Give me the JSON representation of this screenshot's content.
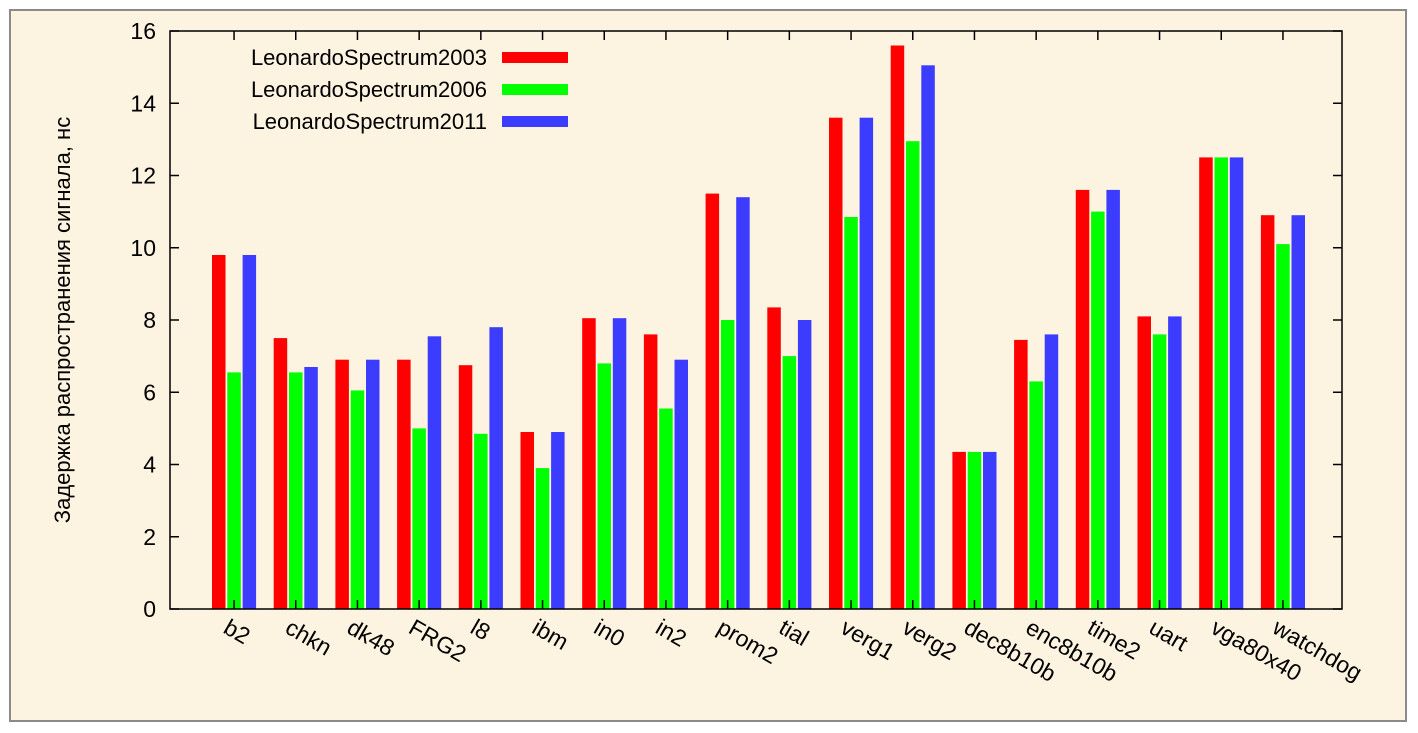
{
  "chart_data": {
    "type": "bar",
    "title": "",
    "xlabel": "",
    "ylabel": "Задержка распространения сигнала, нс",
    "ylim": [
      0,
      16
    ],
    "yticks": [
      0,
      2,
      4,
      6,
      8,
      10,
      12,
      14,
      16
    ],
    "grid": false,
    "legend_position": "top-left",
    "categories": [
      "b2",
      "chkn",
      "dk48",
      "FRG2",
      "l8",
      "ibm",
      "in0",
      "in2",
      "prom2",
      "tial",
      "verg1",
      "verg2",
      "dec8b10b",
      "enc8b10b",
      "time2",
      "uart",
      "vga80x40",
      "watchdog"
    ],
    "series": [
      {
        "name": "LeonardoSpectrum2003",
        "color": "#ff0000",
        "values": [
          9.8,
          7.5,
          6.9,
          6.9,
          6.75,
          4.9,
          8.05,
          7.6,
          11.5,
          8.35,
          13.6,
          15.6,
          4.35,
          7.45,
          11.6,
          8.1,
          12.5,
          10.9
        ]
      },
      {
        "name": "LeonardoSpectrum2006",
        "color": "#00ff00",
        "values": [
          6.55,
          6.55,
          6.05,
          5.0,
          4.85,
          3.9,
          6.8,
          5.55,
          8.0,
          7.0,
          10.85,
          12.95,
          4.35,
          6.3,
          11.0,
          7.6,
          12.5,
          10.1
        ]
      },
      {
        "name": "LeonardoSpectrum2011",
        "color": "#3c3cff",
        "values": [
          9.8,
          6.7,
          6.9,
          7.55,
          7.8,
          4.9,
          8.05,
          6.9,
          11.4,
          8.0,
          13.6,
          15.05,
          4.35,
          7.6,
          11.6,
          8.1,
          12.5,
          10.9
        ]
      }
    ]
  }
}
